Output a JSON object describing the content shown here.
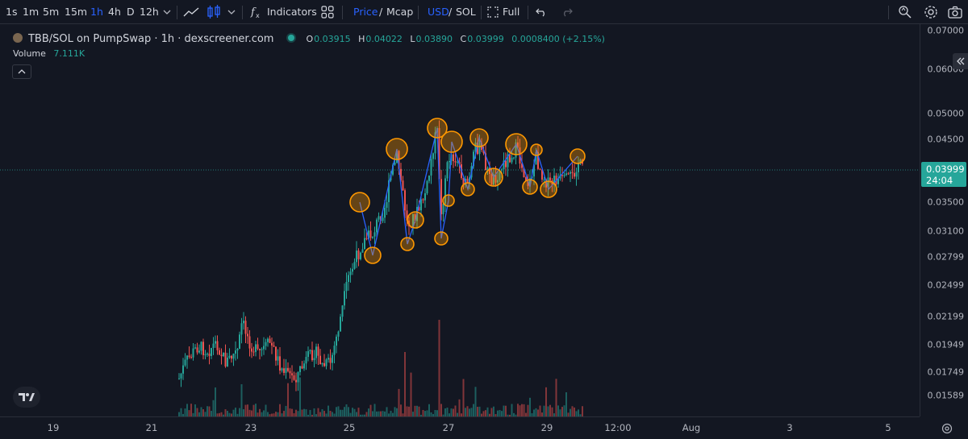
{
  "toolbar": {
    "intervals": [
      "1s",
      "1m",
      "5m",
      "15m",
      "1h",
      "4h",
      "D",
      "12h"
    ],
    "active_interval": "1h",
    "indicators_label": "Indicators",
    "price_label": "Price",
    "slash1": "/",
    "mcap_label": "Mcap",
    "usd_label": "USD",
    "slash2": "/",
    "sol_label": "SOL",
    "full_label": "Full"
  },
  "legend": {
    "symbol": "TBB/SOL on PumpSwap · 1h · dexscreener.com",
    "o_label": "O",
    "o": "0.03915",
    "h_label": "H",
    "h": "0.04022",
    "l_label": "L",
    "l": "0.03890",
    "c_label": "C",
    "c": "0.03999",
    "change": "0.0008400 (+2.15%)",
    "volume_label": "Volume",
    "volume": "7.111K"
  },
  "price_axis": {
    "labels": [
      "0.07000",
      "0.06000",
      "0.05000",
      "0.04500",
      "0.03500",
      "0.03100",
      "0.02799",
      "0.02499",
      "0.02199",
      "0.01949",
      "0.01749",
      "0.01589"
    ],
    "current_price": "0.03999",
    "countdown": "24:04"
  },
  "time_axis": {
    "labels": [
      "19",
      "21",
      "23",
      "25",
      "27",
      "29",
      "12:00",
      "Aug",
      "3",
      "5"
    ]
  },
  "colors": {
    "background": "#131722",
    "up": "#26a69a",
    "down": "#ef5350",
    "annotation_line": "#2962ff",
    "annotation_circle": "#ff9800",
    "accent": "#2962ff"
  },
  "icons": [
    "chevron-down-icon",
    "line-chart-icon",
    "candles-icon",
    "fx-icon",
    "templates-icon",
    "fullscreen-icon",
    "undo-icon",
    "redo-icon",
    "screenshot-zoom-icon",
    "settings-icon",
    "camera-icon",
    "tradingview-logo",
    "collapse-up-icon",
    "sidebar-toggle-icon",
    "eye-settings-icon"
  ]
}
